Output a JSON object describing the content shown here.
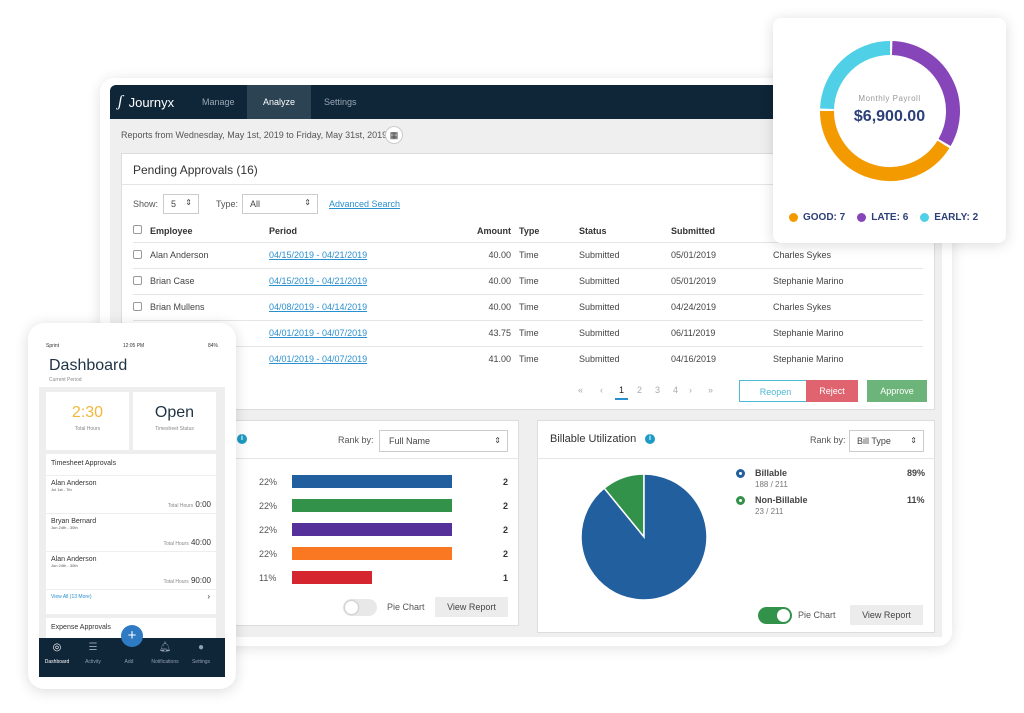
{
  "app": {
    "logo": "Journyx",
    "tabs": [
      "Manage",
      "Analyze",
      "Settings"
    ],
    "active_tab": "Analyze"
  },
  "report_range": "Reports from Wednesday, May 1st, 2019 to Friday, May 31st, 2019",
  "pending": {
    "title": "Pending Approvals (16)",
    "show_label": "Show:",
    "show_value": "5",
    "type_label": "Type:",
    "type_value": "All",
    "advanced_search": "Advanced Search",
    "columns": [
      "Employee",
      "Period",
      "Amount",
      "Type",
      "Status",
      "Submitted",
      ""
    ],
    "rows": [
      {
        "employee": "Alan Anderson",
        "period": "04/15/2019 - 04/21/2019",
        "amount": "40.00",
        "type": "Time",
        "status": "Submitted",
        "submitted": "05/01/2019",
        "approver": "Charles Sykes"
      },
      {
        "employee": "Brian Case",
        "period": "04/15/2019 - 04/21/2019",
        "amount": "40.00",
        "type": "Time",
        "status": "Submitted",
        "submitted": "05/01/2019",
        "approver": "Stephanie Marino"
      },
      {
        "employee": "Brian Mullens",
        "period": "04/08/2019 - 04/14/2019",
        "amount": "40.00",
        "type": "Time",
        "status": "Submitted",
        "submitted": "04/24/2019",
        "approver": "Charles Sykes"
      },
      {
        "employee": "",
        "period": "04/01/2019 - 04/07/2019",
        "amount": "43.75",
        "type": "Time",
        "status": "Submitted",
        "submitted": "06/11/2019",
        "approver": "Stephanie Marino"
      },
      {
        "employee": "",
        "period": "04/01/2019 - 04/07/2019",
        "amount": "41.00",
        "type": "Time",
        "status": "Submitted",
        "submitted": "04/16/2019",
        "approver": "Stephanie Marino"
      }
    ],
    "pagination": {
      "first": "«",
      "prev": "‹",
      "pages": [
        "1",
        "2",
        "3",
        "4"
      ],
      "current": "1",
      "next": "›",
      "last": "»"
    },
    "buttons": {
      "reopen": "Reopen",
      "reject": "Reject",
      "approve": "Approve"
    },
    "colors": {
      "reopen": "#4fb8d4",
      "reject": "#e06470",
      "approve": "#6db47a"
    }
  },
  "left_chart": {
    "rank_label": "Rank by:",
    "rank_value": "Full Name",
    "toggle_label": "Pie Chart",
    "toggle_on": false,
    "view_report": "View Report",
    "chart_data": {
      "type": "bar",
      "series": [
        {
          "percent": "22%",
          "value": 2,
          "color": "#225f9e"
        },
        {
          "percent": "22%",
          "value": 2,
          "color": "#33924a"
        },
        {
          "percent": "22%",
          "value": 2,
          "color": "#55309a"
        },
        {
          "percent": "22%",
          "value": 2,
          "color": "#fb7823"
        },
        {
          "percent": "11%",
          "value": 1,
          "color": "#d52630"
        }
      ]
    }
  },
  "billable": {
    "title": "Billable Utilization",
    "rank_label": "Rank by:",
    "rank_value": "Bill Type",
    "toggle_label": "Pie Chart",
    "toggle_on": true,
    "view_report": "View Report",
    "chart_data": {
      "type": "pie",
      "slices": [
        {
          "label": "Billable",
          "detail": "188 / 211",
          "percent": "89%",
          "value": 188,
          "color": "#225f9e"
        },
        {
          "label": "Non-Billable",
          "detail": "23 / 211",
          "percent": "11%",
          "value": 23,
          "color": "#33924a"
        }
      ]
    }
  },
  "phone": {
    "carrier": "Sprint",
    "time": "12:05 PM",
    "battery": "84%",
    "title": "Dashboard",
    "subtitle": "Current Period",
    "hours_value": "2:30",
    "hours_label": "Total Hours",
    "status_value": "Open",
    "status_label": "Timesheet Status",
    "approvals_title": "Timesheet Approvals",
    "total_label": "Total Hours",
    "approvals": [
      {
        "name": "Alan Anderson",
        "dates": "Jul 1st - 7th",
        "hours": "0:00"
      },
      {
        "name": "Bryan Bernard",
        "dates": "Jun 24th - 30th",
        "hours": "40:00"
      },
      {
        "name": "Alan Anderson",
        "dates": "Jun 24th - 30th",
        "hours": "90:00"
      }
    ],
    "view_all": "View All (13 More)",
    "expense_title": "Expense Approvals",
    "nav": [
      "Dashboard",
      "Activity",
      "Add",
      "Notifications",
      "Settings"
    ]
  },
  "payroll": {
    "title": "Monthly Payroll",
    "amount": "$6,900.00",
    "chart_data": {
      "type": "pie",
      "slices": [
        {
          "label": "GOOD: 7",
          "value": 7,
          "color": "#f39a00"
        },
        {
          "label": "LATE: 6",
          "value": 6,
          "color": "#8646b9"
        },
        {
          "label": "EARLY: 2",
          "value": 2,
          "color": "#4fd0e6"
        }
      ]
    }
  }
}
